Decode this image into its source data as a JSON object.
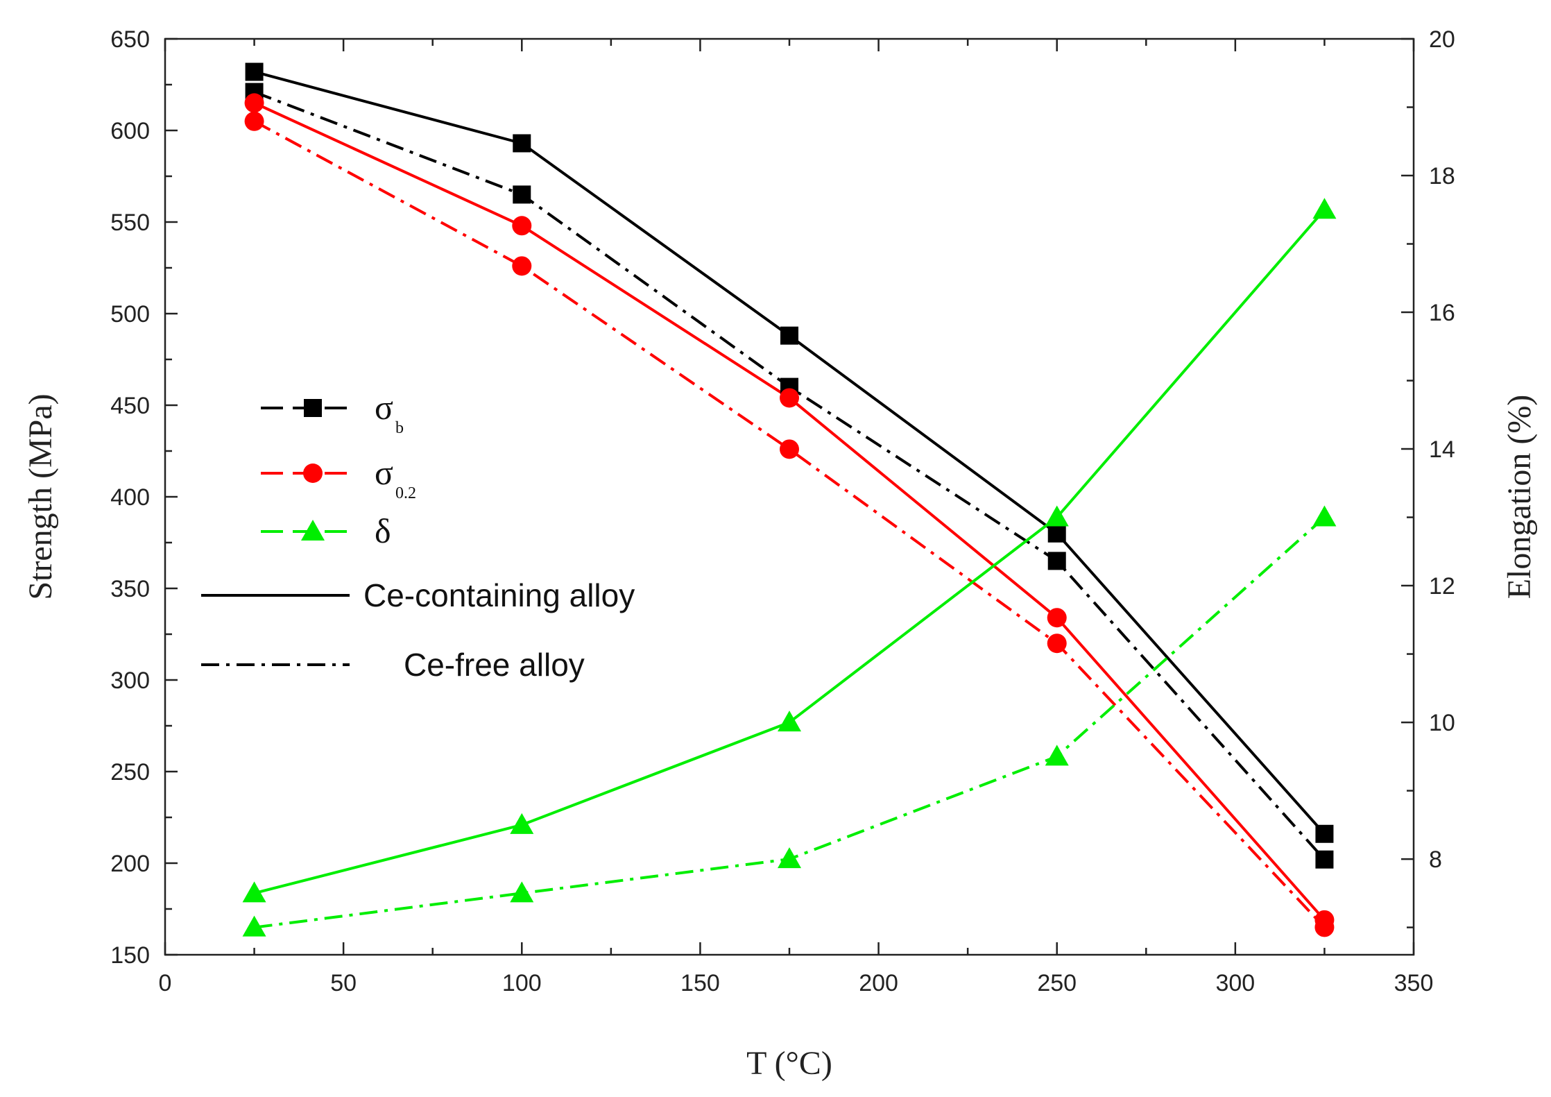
{
  "chart_data": {
    "type": "line",
    "title": "",
    "xlabel": "T (°C)",
    "ylabel": "Strength (MPa)",
    "y2label": "Elongation (%)",
    "xlim": [
      0,
      350
    ],
    "ylim": [
      150,
      650
    ],
    "y2lim": [
      6.6,
      20
    ],
    "xticks": [
      "0",
      "50",
      "100",
      "150",
      "200",
      "250",
      "300",
      "350"
    ],
    "yticks": [
      "150",
      "200",
      "250",
      "300",
      "350",
      "400",
      "450",
      "500",
      "550",
      "600",
      "650"
    ],
    "y2ticks": [
      "8",
      "10",
      "12",
      "14",
      "16",
      "18",
      "20"
    ],
    "x": [
      25,
      100,
      175,
      250,
      325
    ],
    "series": [
      {
        "name": "σb Ce-containing alloy",
        "axis": "left",
        "color": "#000000",
        "marker": "square",
        "dash": "solid",
        "values": [
          632,
          593,
          488,
          380,
          216
        ]
      },
      {
        "name": "σb Ce-free alloy",
        "axis": "left",
        "color": "#000000",
        "marker": "square",
        "dash": "dashdot",
        "values": [
          621,
          565,
          460,
          365,
          202
        ]
      },
      {
        "name": "σ0.2 Ce-containing alloy",
        "axis": "left",
        "color": "#ff0000",
        "marker": "circle",
        "dash": "solid",
        "values": [
          615,
          548,
          454,
          334,
          169
        ]
      },
      {
        "name": "σ0.2 Ce-free alloy",
        "axis": "left",
        "color": "#ff0000",
        "marker": "circle",
        "dash": "dashdot",
        "values": [
          605,
          526,
          426,
          320,
          165
        ]
      },
      {
        "name": "δ Ce-containing alloy",
        "axis": "right",
        "color": "#00ee00",
        "marker": "triangle",
        "dash": "solid",
        "values": [
          7.5,
          8.5,
          10.0,
          13.0,
          17.5
        ]
      },
      {
        "name": "δ Ce-free alloy",
        "axis": "right",
        "color": "#00ee00",
        "marker": "triangle",
        "dash": "dashdot",
        "values": [
          7.0,
          7.5,
          8.0,
          9.5,
          13.0
        ]
      }
    ],
    "legend": {
      "placement": "middle-left",
      "markers": [
        {
          "symbol": "σ",
          "subscript": "b",
          "color": "#000000",
          "marker": "square"
        },
        {
          "symbol": "σ",
          "subscript": "0.2",
          "color": "#ff0000",
          "marker": "circle"
        },
        {
          "symbol": "δ",
          "subscript": "",
          "color": "#00ee00",
          "marker": "triangle"
        }
      ],
      "styles": [
        {
          "label": "Ce-containing alloy",
          "dash": "solid"
        },
        {
          "label": "Ce-free alloy",
          "dash": "dashdot"
        }
      ]
    }
  }
}
